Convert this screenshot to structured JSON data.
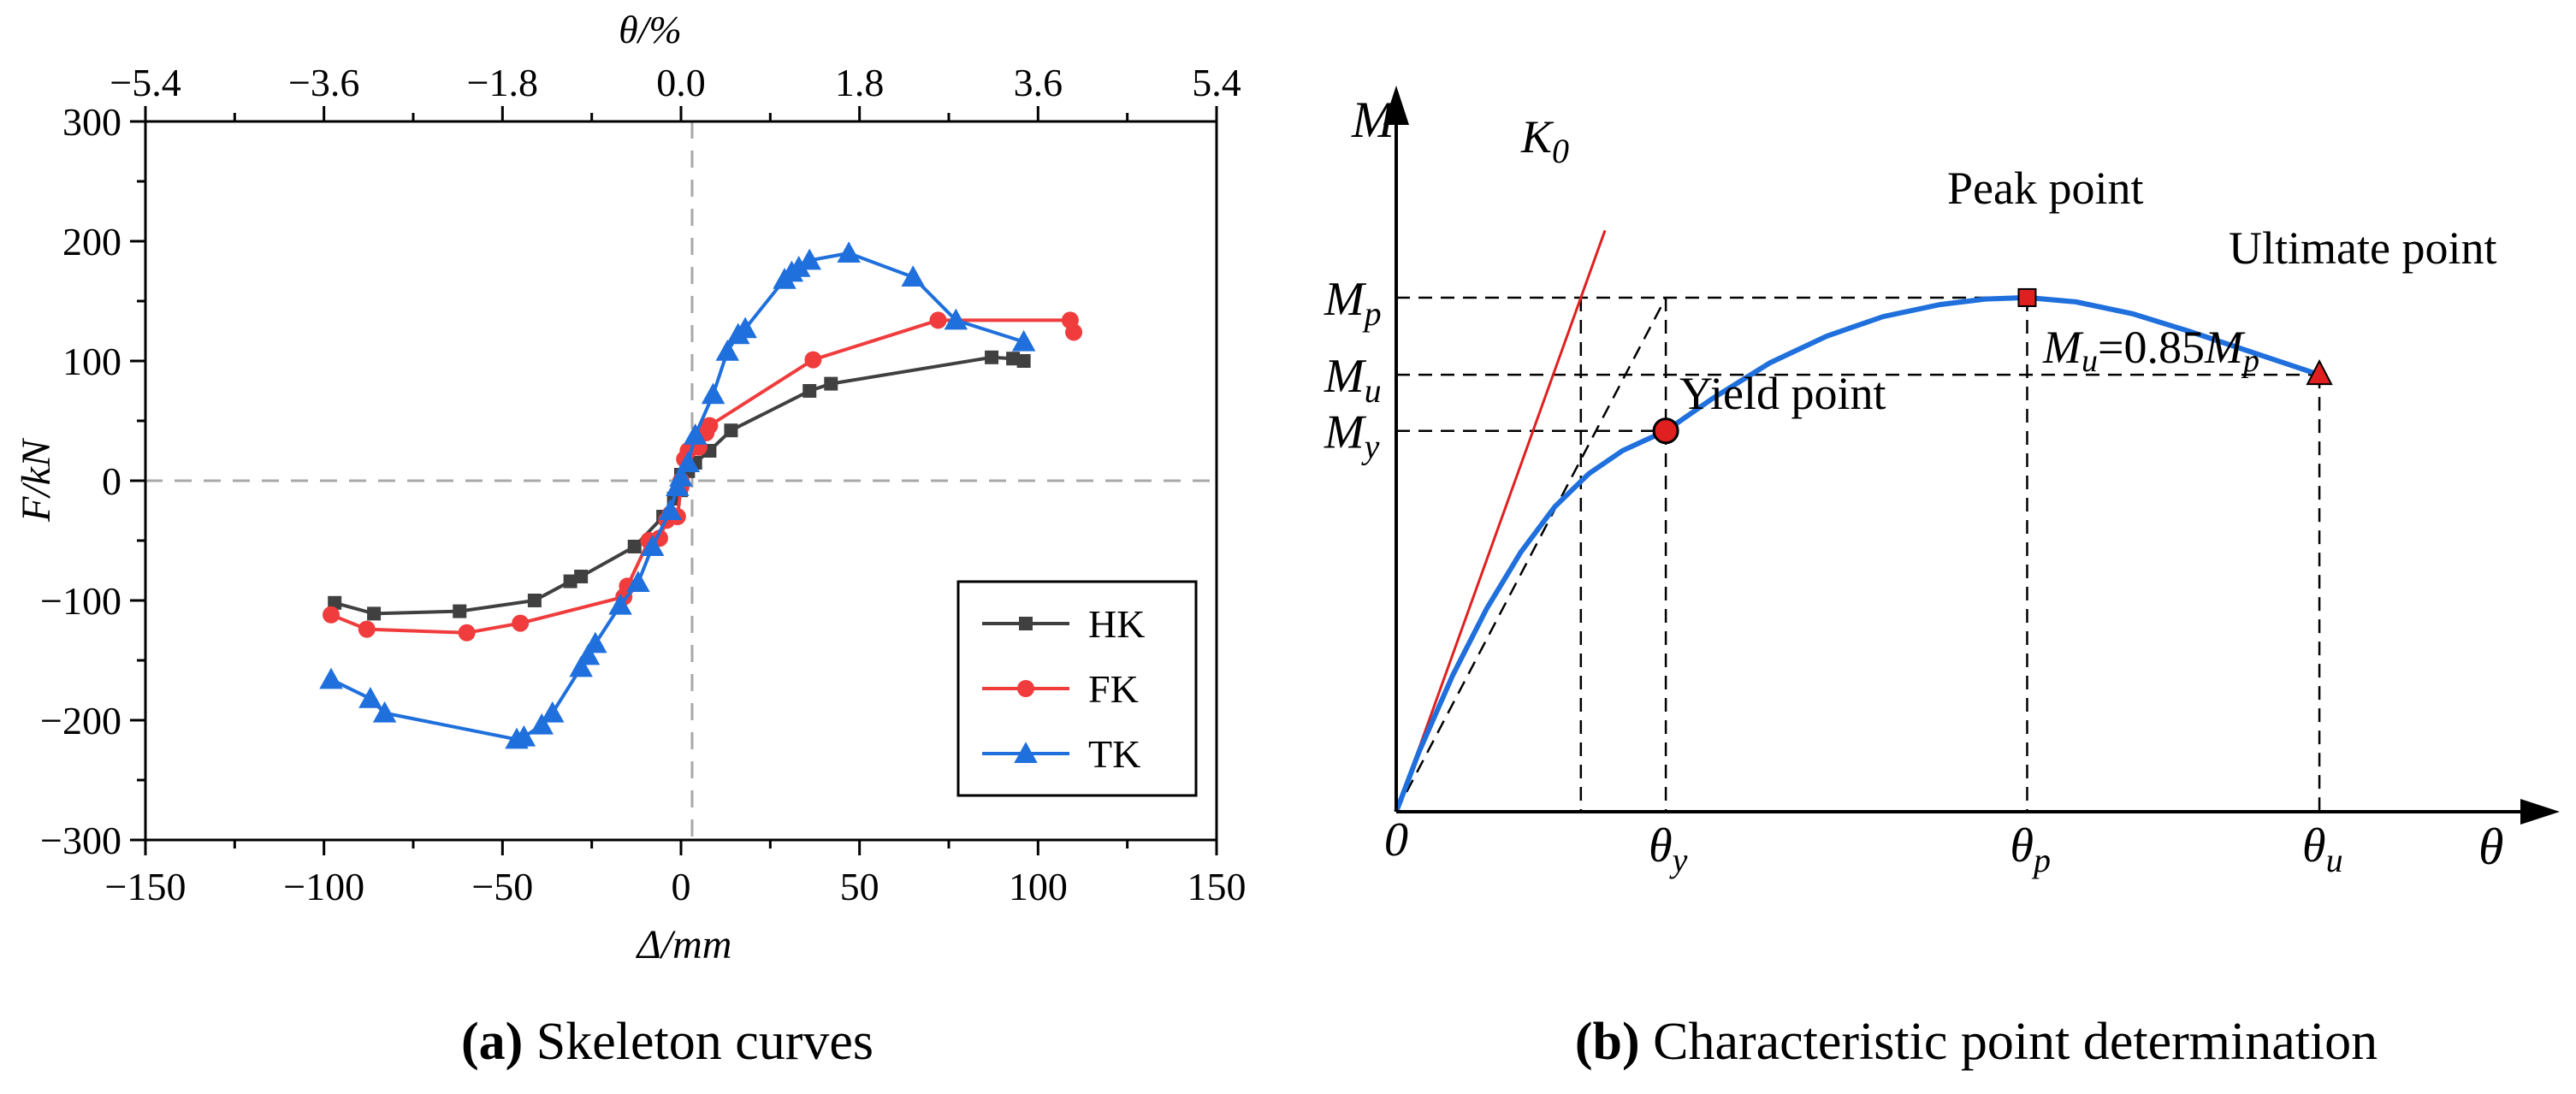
{
  "chart_data": [
    {
      "type": "line",
      "title": "",
      "xlabel": "Δ/mm",
      "ylabel": "F/kN",
      "top_xlabel": "θ/%",
      "xlim": [
        -150,
        150
      ],
      "ylim": [
        -300,
        300
      ],
      "x_ticks": [
        "−150",
        "−100",
        "−50",
        "0",
        "50",
        "100",
        "150"
      ],
      "y_ticks": [
        "300",
        "200",
        "100",
        "0",
        "−100",
        "−200",
        "−300"
      ],
      "top_ticks": [
        "−5.4",
        "−3.6",
        "−1.8",
        "0.0",
        "1.8",
        "3.6",
        "5.4"
      ],
      "legend_position": "bottom-right",
      "caption_letter": "(a)",
      "caption_text": " Skeleton curves",
      "series": [
        {
          "name": "HK",
          "color": "#404040",
          "marker": "square",
          "points": [
            [
              -97,
              -102
            ],
            [
              -86,
              -111
            ],
            [
              -62,
              -109
            ],
            [
              -41,
              -100
            ],
            [
              -31,
              -84
            ],
            [
              -28,
              -80
            ],
            [
              -13,
              -55
            ],
            [
              -5,
              -30
            ],
            [
              -2,
              -15
            ],
            [
              0,
              -8
            ],
            [
              0,
              0
            ],
            [
              0,
              5
            ],
            [
              2,
              8
            ],
            [
              4,
              15
            ],
            [
              8,
              25
            ],
            [
              14,
              42
            ],
            [
              36,
              75
            ],
            [
              42,
              81
            ],
            [
              87,
              103
            ],
            [
              93,
              102
            ],
            [
              96,
              100
            ]
          ]
        },
        {
          "name": "FK",
          "color": "#f03c3c",
          "marker": "circle",
          "points": [
            [
              -98,
              -112
            ],
            [
              -88,
              -124
            ],
            [
              -60,
              -127
            ],
            [
              -45,
              -119
            ],
            [
              -16,
              -97
            ],
            [
              -15,
              -88
            ],
            [
              -9,
              -50
            ],
            [
              -6,
              -48
            ],
            [
              -4,
              -33
            ],
            [
              -3,
              -28
            ],
            [
              -1,
              -30
            ],
            [
              0,
              -5
            ],
            [
              0,
              0
            ],
            [
              1,
              18
            ],
            [
              2,
              25
            ],
            [
              5,
              28
            ],
            [
              7,
              40
            ],
            [
              8,
              46
            ],
            [
              37,
              101
            ],
            [
              72,
              134
            ],
            [
              109,
              134
            ],
            [
              110,
              124
            ]
          ]
        },
        {
          "name": "TK",
          "color": "#1f6fdc",
          "marker": "triangle",
          "points": [
            [
              -98,
              -166
            ],
            [
              -87,
              -182
            ],
            [
              -83,
              -194
            ],
            [
              -46,
              -216
            ],
            [
              -44,
              -214
            ],
            [
              -39,
              -204
            ],
            [
              -36,
              -194
            ],
            [
              -28,
              -156
            ],
            [
              -26,
              -146
            ],
            [
              -24,
              -136
            ],
            [
              -17,
              -104
            ],
            [
              -12,
              -85
            ],
            [
              -8,
              -55
            ],
            [
              -3,
              -25
            ],
            [
              -1,
              -5
            ],
            [
              0,
              3
            ],
            [
              2,
              15
            ],
            [
              4,
              38
            ],
            [
              9,
              72
            ],
            [
              13,
              108
            ],
            [
              16,
              122
            ],
            [
              18,
              127
            ],
            [
              29,
              168
            ],
            [
              31,
              174
            ],
            [
              33,
              178
            ],
            [
              36,
              184
            ],
            [
              47,
              190
            ],
            [
              65,
              170
            ],
            [
              77,
              134
            ],
            [
              96,
              116
            ]
          ]
        }
      ]
    },
    {
      "type": "line",
      "title": "",
      "xlabel": "θ",
      "ylabel": "M",
      "origin_label": "0",
      "caption_letter": "(b)",
      "caption_text": " Characteristic point determination",
      "xlim": [
        0,
        1
      ],
      "ylim": [
        0,
        1
      ],
      "curve_color": "#1f6fdc",
      "k0_color": "#e02020",
      "k0_label": "K",
      "k0_sub": "0",
      "x_ticks": [
        {
          "name": "θy",
          "main": "θ",
          "sub": "y",
          "value": 0.238
        },
        {
          "name": "θp",
          "main": "θ",
          "sub": "p",
          "value": 0.557
        },
        {
          "name": "θu",
          "main": "θ",
          "sub": "u",
          "value": 0.815
        }
      ],
      "y_ticks": [
        {
          "name": "Mp",
          "main": "M",
          "sub": "p",
          "value": 0.733
        },
        {
          "name": "Mu",
          "main": "M",
          "sub": "u",
          "value": 0.623
        },
        {
          "name": "My",
          "main": "M",
          "sub": "y",
          "value": 0.543
        }
      ],
      "points": [
        {
          "name": "Yield point",
          "theta": 0.238,
          "m": 0.543,
          "marker": "circle",
          "color": "#e02020"
        },
        {
          "name": "Peak point",
          "theta": 0.557,
          "m": 0.733,
          "marker": "square",
          "color": "#e02020"
        },
        {
          "name": "Ultimate point",
          "theta": 0.815,
          "m": 0.623,
          "marker": "triangle",
          "color": "#e02020"
        }
      ],
      "secant_top": {
        "theta": 0.238,
        "m": 0.733
      },
      "k0_secant_theta": 0.163,
      "annotation": {
        "main1": "M",
        "sub1": "u",
        "rest": "=0.85",
        "main2": "M",
        "sub2": "p"
      },
      "curve": [
        [
          0,
          0
        ],
        [
          0.02,
          0.085
        ],
        [
          0.05,
          0.195
        ],
        [
          0.08,
          0.29
        ],
        [
          0.11,
          0.37
        ],
        [
          0.14,
          0.435
        ],
        [
          0.17,
          0.482
        ],
        [
          0.2,
          0.515
        ],
        [
          0.238,
          0.543
        ],
        [
          0.28,
          0.59
        ],
        [
          0.33,
          0.64
        ],
        [
          0.38,
          0.678
        ],
        [
          0.43,
          0.706
        ],
        [
          0.48,
          0.723
        ],
        [
          0.52,
          0.731
        ],
        [
          0.557,
          0.733
        ],
        [
          0.6,
          0.727
        ],
        [
          0.65,
          0.71
        ],
        [
          0.7,
          0.685
        ],
        [
          0.75,
          0.658
        ],
        [
          0.815,
          0.623
        ]
      ]
    }
  ]
}
